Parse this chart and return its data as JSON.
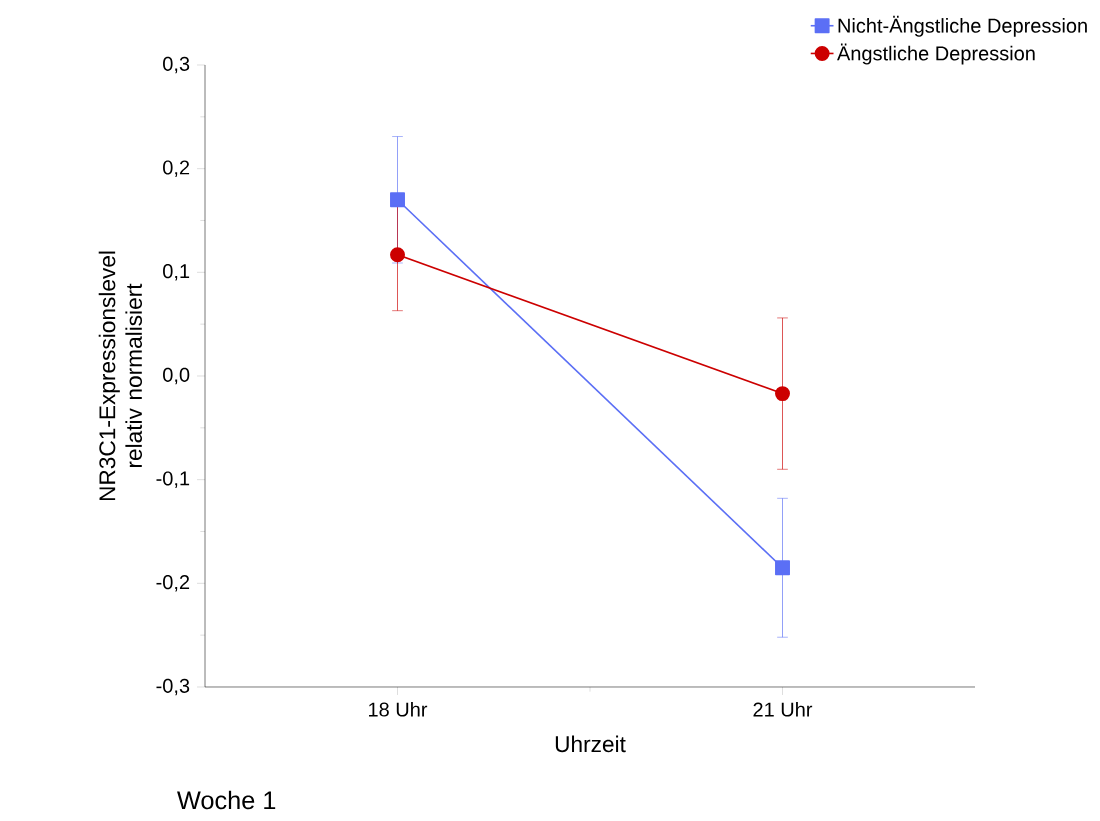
{
  "chart_data": {
    "type": "line",
    "xlabel": "Uhrzeit",
    "ylabel": "NR3C1-Expressionslevel relativ normalisiert",
    "categories": [
      "18 Uhr",
      "21 Uhr"
    ],
    "series": [
      {
        "name": "Nicht-Ängstliche Depression",
        "color": "#5b6ff5",
        "marker": "square",
        "values": [
          0.17,
          -0.185
        ],
        "errors": [
          0.061,
          0.067
        ]
      },
      {
        "name": "Ängstliche Depression",
        "color": "#cc0000",
        "marker": "circle",
        "values": [
          0.117,
          -0.017
        ],
        "errors": [
          0.054,
          0.073
        ]
      }
    ],
    "ylim": [
      -0.3,
      0.3
    ],
    "yticks": [
      {
        "value": -0.3,
        "label": "-0,3"
      },
      {
        "value": -0.2,
        "label": "-0,2"
      },
      {
        "value": -0.1,
        "label": "-0,1"
      },
      {
        "value": 0.0,
        "label": "0,0"
      },
      {
        "value": 0.1,
        "label": "0,1"
      },
      {
        "value": 0.2,
        "label": "0,2"
      },
      {
        "value": 0.3,
        "label": "0,3"
      }
    ],
    "legend": "top right",
    "grid": false,
    "annotations": [
      "Woche 1"
    ]
  }
}
